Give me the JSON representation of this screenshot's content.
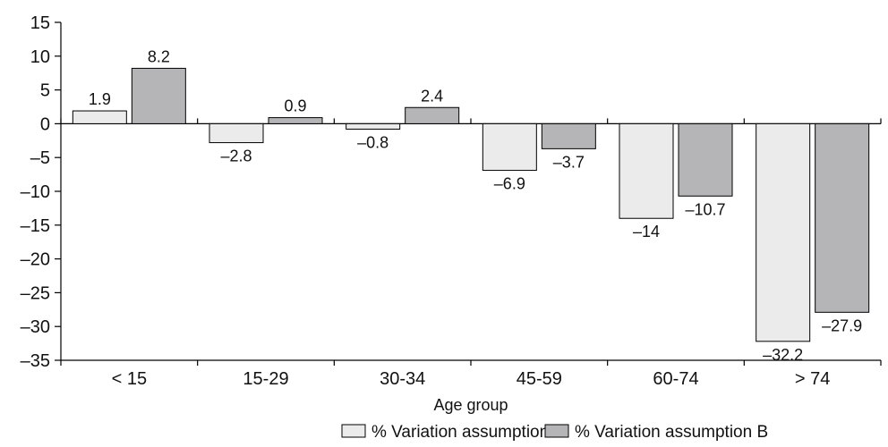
{
  "chart_data": {
    "type": "bar",
    "categories": [
      "< 15",
      "15-29",
      "30-34",
      "45-59",
      "60-74",
      "> 74"
    ],
    "series": [
      {
        "name": "% Variation assumption A",
        "values": [
          1.9,
          -2.8,
          -0.8,
          -6.9,
          -14,
          -32.2
        ],
        "labels": [
          "1.9",
          "–2.8",
          "–0.8",
          "–6.9",
          "–14",
          "–32.2"
        ],
        "color": "#ebebeb"
      },
      {
        "name": "% Variation assumption B",
        "values": [
          8.2,
          0.9,
          2.4,
          -3.7,
          -10.7,
          -27.9
        ],
        "labels": [
          "8.2",
          "0.9",
          "2.4",
          "–3.7",
          "–10.7",
          "–27.9"
        ],
        "color": "#b5b5b8"
      }
    ],
    "y_ticks": [
      15,
      10,
      5,
      0,
      -5,
      -10,
      -15,
      -20,
      -25,
      -30,
      -35
    ],
    "y_tick_labels": [
      "15",
      "10",
      "5",
      "0",
      "–5",
      "–10",
      "–15",
      "–20",
      "–25",
      "–30",
      "–35"
    ],
    "ylim": [
      -35,
      15
    ],
    "xlabel": "Age group",
    "ylabel": "",
    "title": "",
    "grid": false,
    "legend_position": "bottom"
  }
}
